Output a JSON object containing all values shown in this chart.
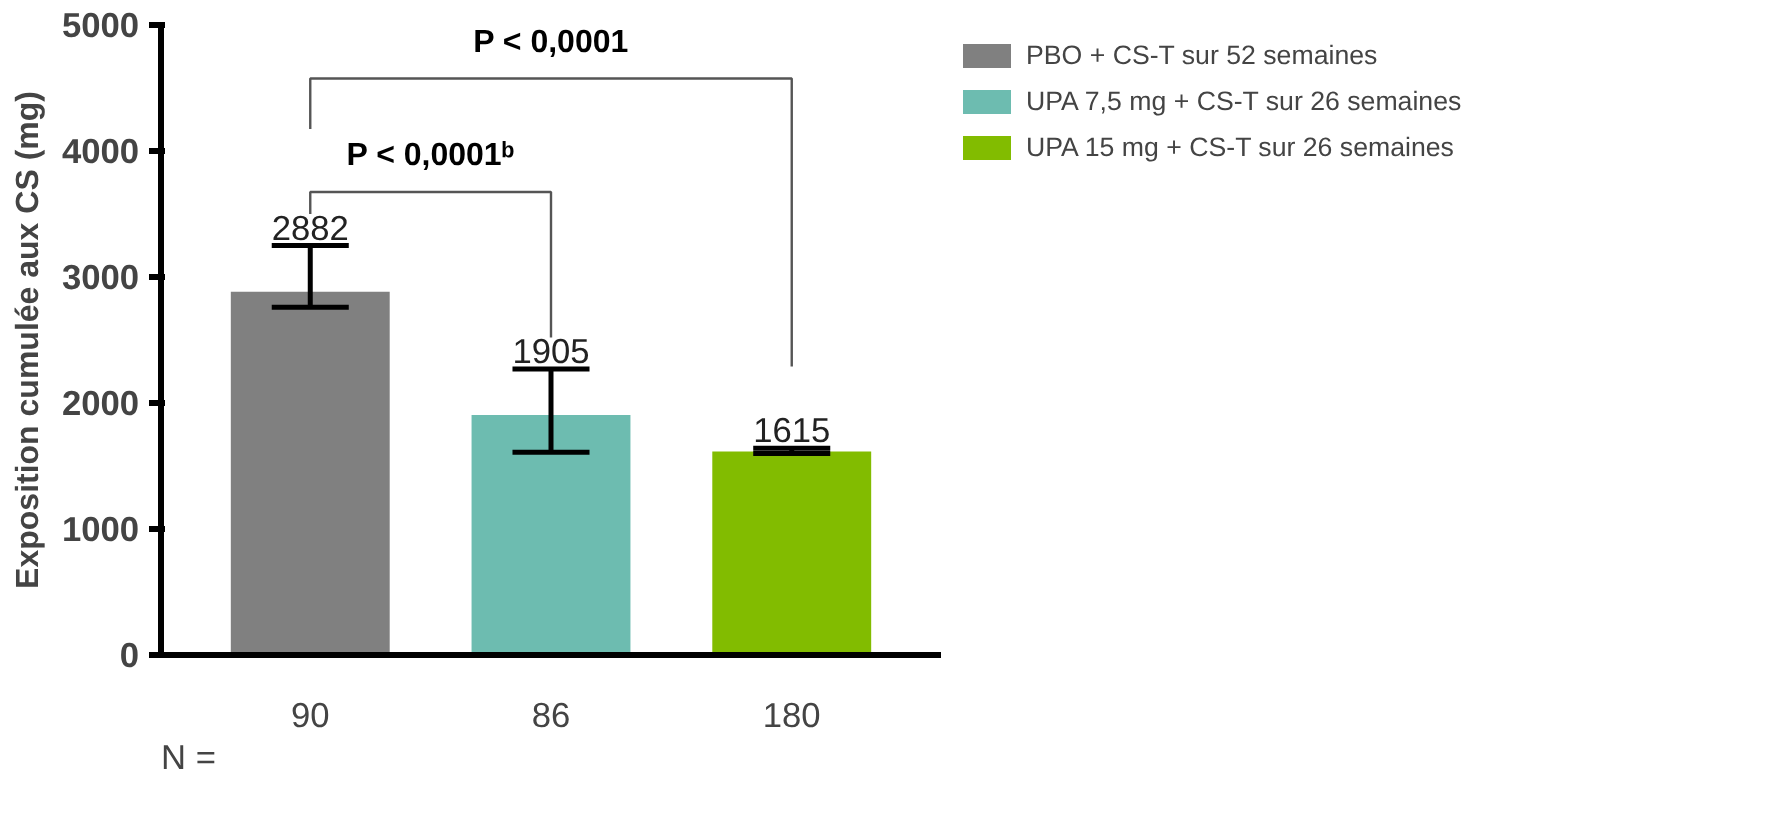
{
  "chart_data": {
    "type": "bar",
    "ylabel": "Exposition cumulée aux CS (mg)",
    "categories": [
      "90",
      "86",
      "180"
    ],
    "series": [
      {
        "name": "PBO + CS-T sur 52 semaines",
        "color": "#808080",
        "values": [
          2882,
          null,
          null
        ],
        "errors": [
          [
            2760,
            3250
          ],
          null,
          null
        ]
      },
      {
        "name": "UPA 7,5 mg + CS-T sur 26 semaines",
        "color": "#6dbcb0",
        "values": [
          null,
          1905,
          null
        ],
        "errors": [
          null,
          [
            1610,
            2270
          ],
          null
        ]
      },
      {
        "name": "UPA 15 mg + CS-T sur 26 semaines",
        "color": "#82bc00",
        "values": [
          null,
          null,
          1615
        ],
        "errors": [
          null,
          null,
          [
            1600,
            1640
          ]
        ]
      }
    ],
    "data_labels": true,
    "ylim": [
      0,
      5000
    ],
    "yticks": [
      0,
      1000,
      2000,
      3000,
      4000,
      5000
    ],
    "grid": false,
    "legend": "right",
    "annotations": [
      "P < 0,0001",
      "P < 0,0001ᵇ",
      "N ="
    ]
  }
}
